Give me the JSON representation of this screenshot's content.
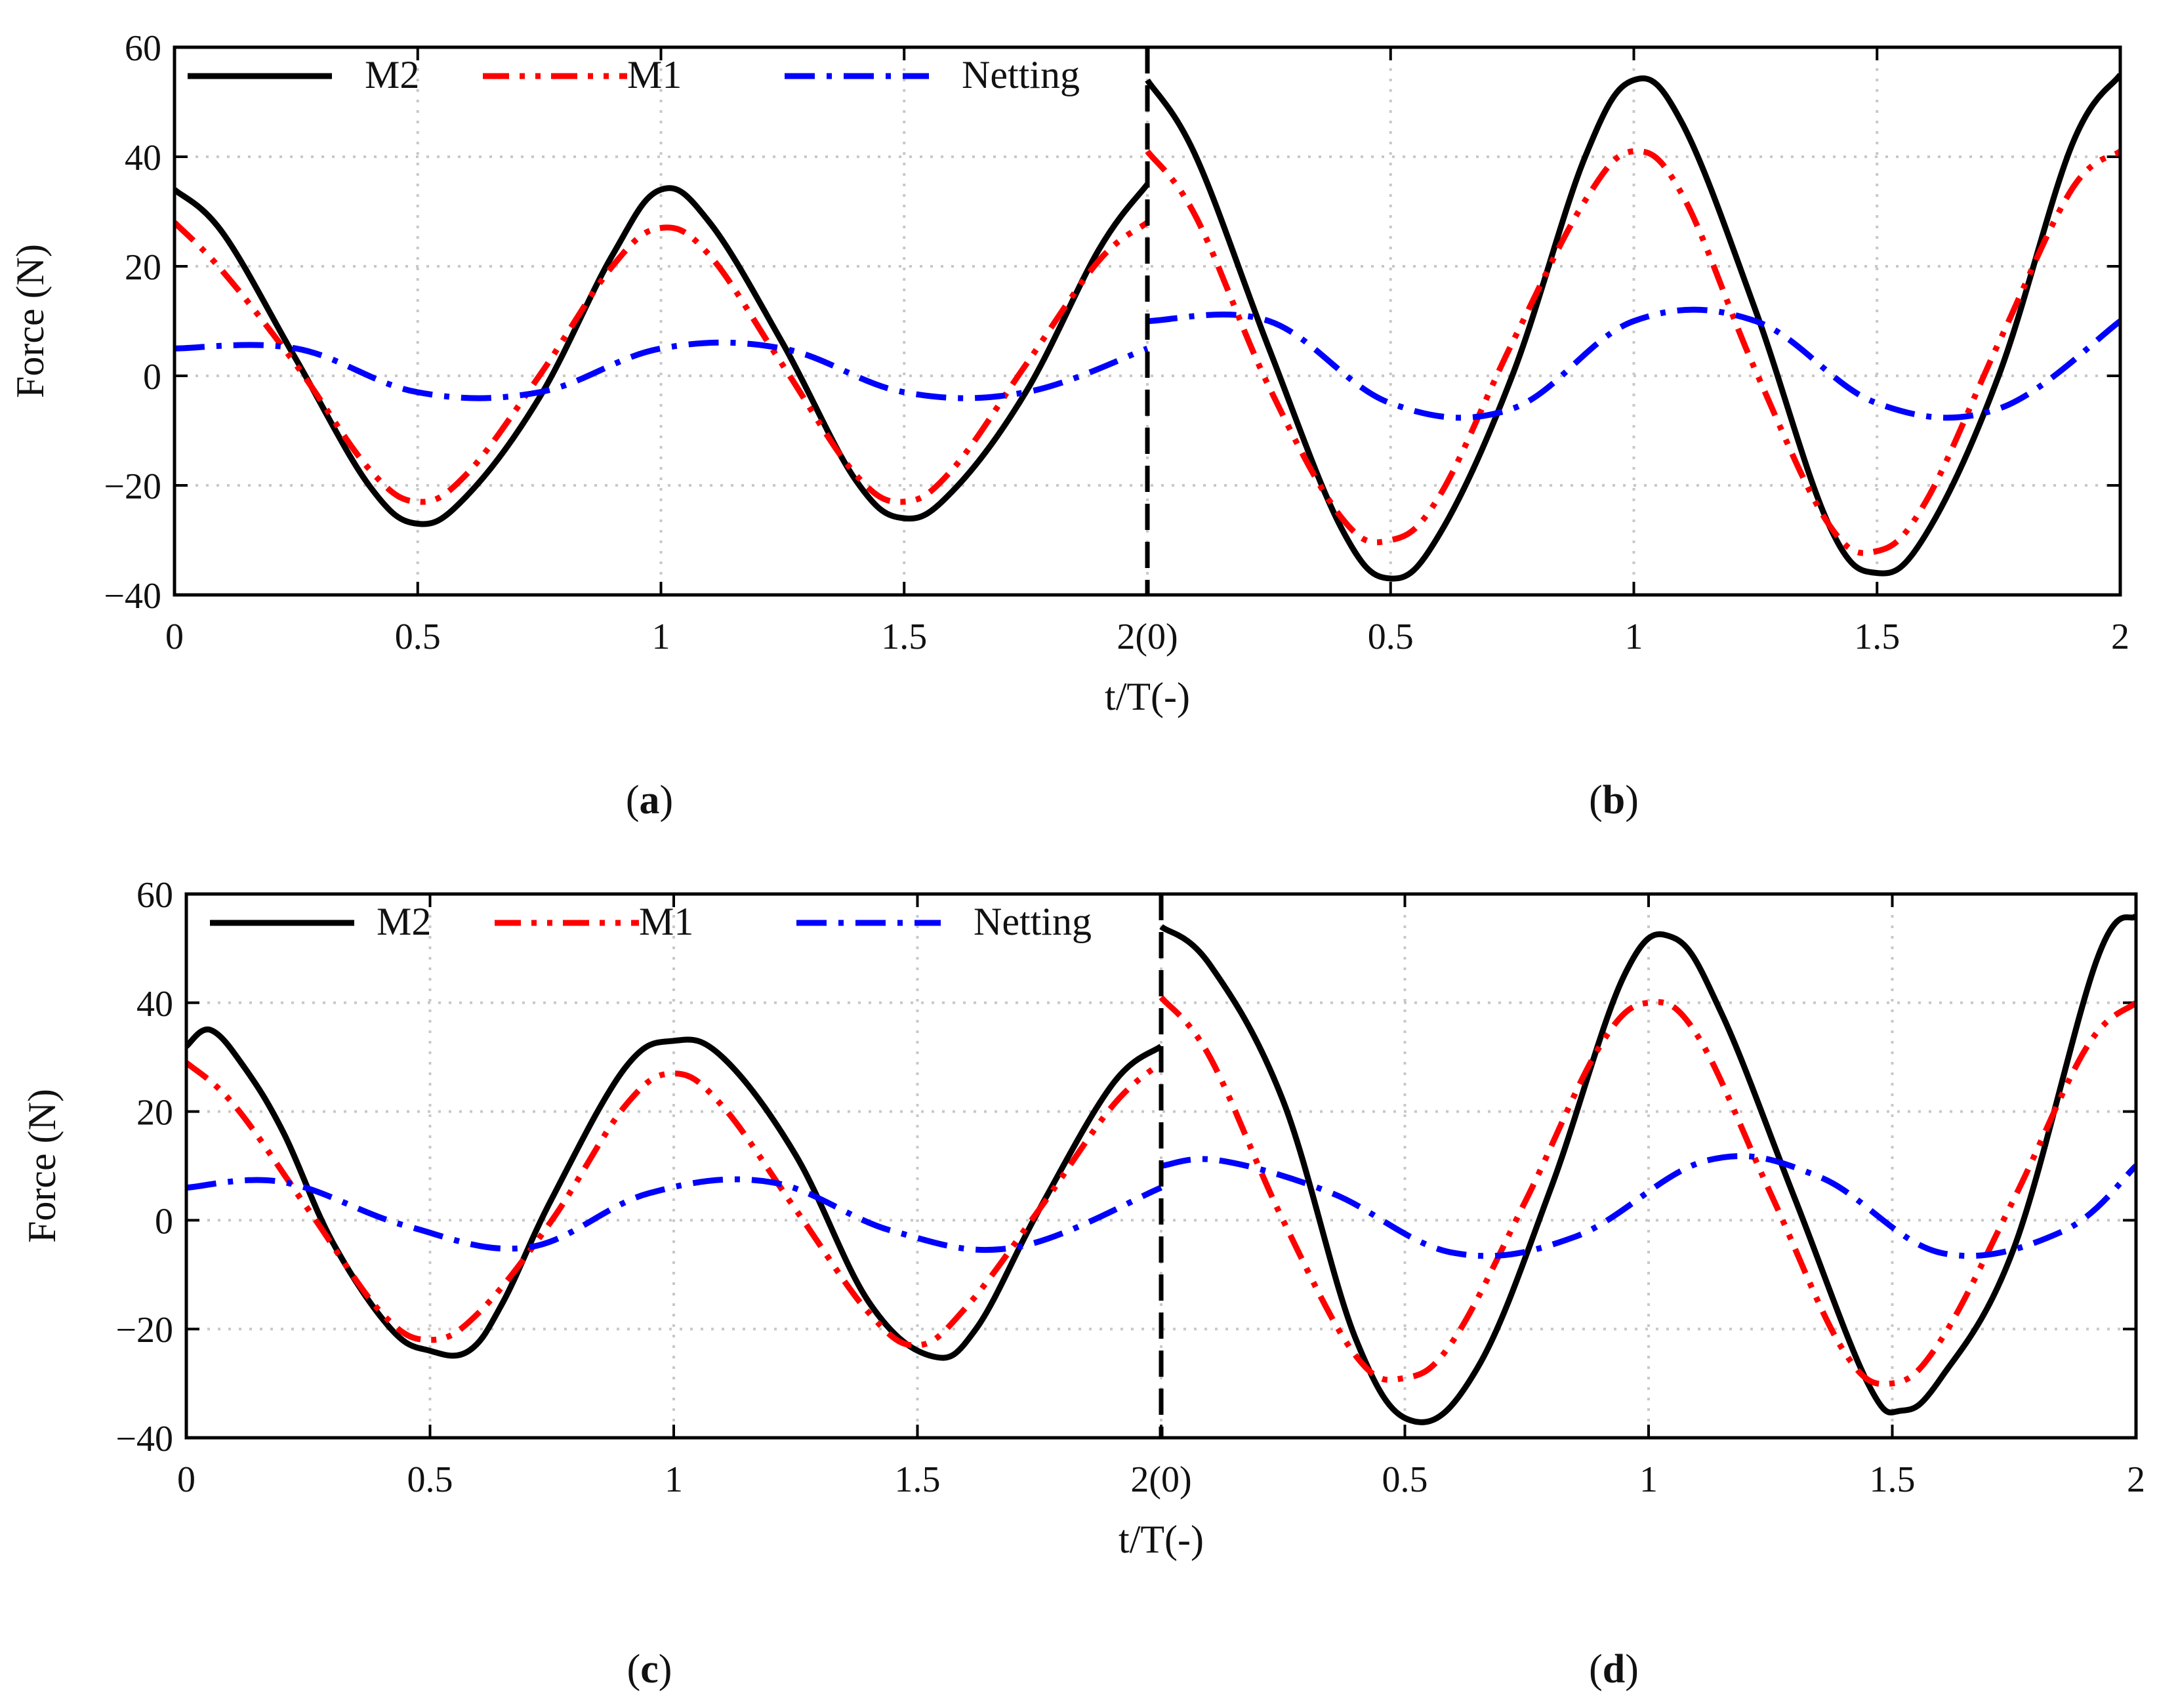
{
  "figure": {
    "captions": [
      {
        "letter": "a"
      },
      {
        "letter": "b"
      },
      {
        "letter": "c"
      },
      {
        "letter": "d"
      }
    ]
  },
  "colors": {
    "M2": "#000000",
    "M1": "#ff0000",
    "Netting": "#0000ff",
    "grid": "#c8c8c8",
    "divider": "#000000"
  },
  "chart_data": [
    {
      "type": "line",
      "panels": [
        "a",
        "b"
      ],
      "xlabel": "t/T(-)",
      "ylabel": "Force (N)",
      "ylim": [
        -40,
        60
      ],
      "yticks": [
        "−40",
        "−20",
        "0",
        "20",
        "40",
        "60"
      ],
      "xlim": [
        0,
        4
      ],
      "xticks": [
        "0",
        "0.5",
        "1",
        "1.5",
        "2(0)",
        "0.5",
        "1",
        "1.5",
        "2"
      ],
      "divider_x": 2,
      "grid": true,
      "legend": {
        "position": "top-left",
        "entries": [
          "M2",
          "M1",
          "Netting"
        ]
      },
      "series": [
        {
          "name": "M2",
          "style": "solid",
          "x": [
            0,
            0.1,
            0.25,
            0.4,
            0.5,
            0.6,
            0.75,
            0.9,
            1.0,
            1.1,
            1.25,
            1.4,
            1.5,
            1.6,
            1.75,
            1.9,
            2.0,
            2.0,
            2.1,
            2.25,
            2.4,
            2.5,
            2.6,
            2.75,
            2.9,
            3.0,
            3.1,
            3.25,
            3.4,
            3.5,
            3.6,
            3.75,
            3.9,
            4.0
          ],
          "values": [
            34,
            26,
            3,
            -20,
            -27,
            -22,
            -4,
            22,
            34,
            28,
            6,
            -19,
            -26,
            -21,
            -3,
            23,
            35,
            54,
            40,
            5,
            -28,
            -37,
            -29,
            0,
            40,
            54,
            46,
            12,
            -27,
            -36,
            -29,
            0,
            42,
            55
          ]
        },
        {
          "name": "M1",
          "style": "dashdot2",
          "x": [
            0,
            0.1,
            0.25,
            0.4,
            0.5,
            0.6,
            0.75,
            0.9,
            1.0,
            1.1,
            1.25,
            1.4,
            1.5,
            1.6,
            1.75,
            1.9,
            2.0,
            2.0,
            2.1,
            2.25,
            2.4,
            2.5,
            2.6,
            2.75,
            2.9,
            3.0,
            3.1,
            3.25,
            3.4,
            3.5,
            3.6,
            3.75,
            3.9,
            4.0
          ],
          "values": [
            28,
            19,
            2,
            -17,
            -23,
            -18,
            0,
            20,
            27,
            22,
            2,
            -18,
            -23,
            -17,
            2,
            21,
            28,
            41,
            29,
            -2,
            -26,
            -30,
            -22,
            6,
            32,
            41,
            33,
            1,
            -27,
            -32,
            -23,
            6,
            34,
            41
          ]
        },
        {
          "name": "Netting",
          "style": "dashdot",
          "x": [
            0,
            0.25,
            0.5,
            0.75,
            1.0,
            1.25,
            1.5,
            1.75,
            2.0,
            2.0,
            2.25,
            2.5,
            2.75,
            3.0,
            3.25,
            3.5,
            3.75,
            4.0
          ],
          "values": [
            5,
            5,
            -3,
            -3,
            5,
            5,
            -3,
            -3,
            5,
            10,
            10,
            -5,
            -6,
            10,
            10,
            -5,
            -6,
            10
          ]
        }
      ]
    },
    {
      "type": "line",
      "panels": [
        "c",
        "d"
      ],
      "xlabel": "t/T(-)",
      "ylabel": "Force (N)",
      "ylim": [
        -40,
        60
      ],
      "yticks": [
        "−40",
        "−20",
        "0",
        "20",
        "40",
        "60"
      ],
      "xlim": [
        0,
        4
      ],
      "xticks": [
        "0",
        "0.5",
        "1",
        "1.5",
        "2(0)",
        "0.5",
        "1",
        "1.5",
        "2"
      ],
      "divider_x": 2,
      "grid": true,
      "legend": {
        "position": "top-left",
        "entries": [
          "M2",
          "M1",
          "Netting"
        ]
      },
      "series": [
        {
          "name": "M2",
          "style": "solid",
          "x": [
            0,
            0.05,
            0.12,
            0.2,
            0.3,
            0.42,
            0.5,
            0.58,
            0.65,
            0.75,
            0.9,
            1.0,
            1.1,
            1.25,
            1.4,
            1.53,
            1.62,
            1.75,
            1.9,
            2.0,
            2.0,
            2.1,
            2.25,
            2.4,
            2.52,
            2.65,
            2.8,
            2.95,
            3.05,
            3.15,
            3.3,
            3.45,
            3.52,
            3.6,
            3.75,
            3.92,
            4.0
          ],
          "values": [
            32,
            35,
            28,
            16,
            -4,
            -20,
            -24,
            -24,
            -15,
            4,
            28,
            33,
            30,
            12,
            -15,
            -25,
            -20,
            2,
            25,
            32,
            54,
            47,
            22,
            -22,
            -37,
            -27,
            6,
            45,
            52,
            38,
            4,
            -30,
            -35,
            -29,
            -5,
            48,
            56
          ]
        },
        {
          "name": "M1",
          "style": "dashdot2",
          "x": [
            0,
            0.1,
            0.25,
            0.4,
            0.5,
            0.6,
            0.75,
            0.9,
            1.0,
            1.1,
            1.25,
            1.4,
            1.5,
            1.6,
            1.75,
            1.9,
            2.0,
            2.0,
            2.1,
            2.25,
            2.4,
            2.5,
            2.6,
            2.75,
            2.9,
            3.0,
            3.1,
            3.25,
            3.4,
            3.5,
            3.6,
            3.75,
            3.9,
            4.0
          ],
          "values": [
            29,
            21,
            2,
            -17,
            -22,
            -17,
            0,
            21,
            27,
            21,
            2,
            -17,
            -23,
            -16,
            2,
            21,
            29,
            41,
            30,
            0,
            -25,
            -29,
            -22,
            4,
            32,
            40,
            34,
            5,
            -24,
            -30,
            -22,
            4,
            32,
            40
          ]
        },
        {
          "name": "Netting",
          "style": "dashdot",
          "x": [
            0,
            0.2,
            0.45,
            0.7,
            0.95,
            1.2,
            1.45,
            1.7,
            2.0,
            2.0,
            2.12,
            2.35,
            2.6,
            2.85,
            3.12,
            3.35,
            3.6,
            3.85,
            4.0
          ],
          "values": [
            6,
            7,
            -1,
            -5,
            5,
            7,
            -2,
            -5,
            6,
            10,
            11,
            5,
            -6,
            -3,
            11,
            8,
            -6,
            -2,
            10
          ]
        }
      ]
    }
  ]
}
